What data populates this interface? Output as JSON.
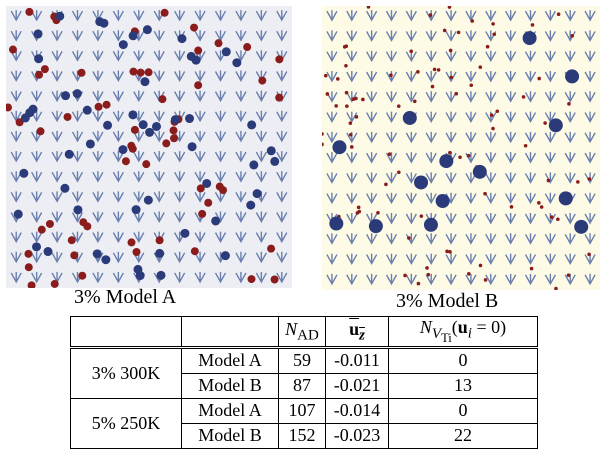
{
  "captions": {
    "left": "3% Model A",
    "right": "3% Model B"
  },
  "table": {
    "header": [
      [
        "N",
        "AD"
      ],
      [
        "u",
        "z"
      ],
      [
        "N",
        "V",
        "Ti",
        "(",
        "u",
        "i",
        " = 0)"
      ]
    ],
    "groups": [
      {
        "label": "3% 300K",
        "rows": [
          [
            "Model A",
            59,
            -0.011,
            0
          ],
          [
            "Model B",
            87,
            -0.021,
            13
          ]
        ]
      },
      {
        "label": "5% 250K",
        "rows": [
          [
            "Model A",
            107,
            -0.014,
            0
          ],
          [
            "Model B",
            152,
            -0.023,
            22
          ]
        ]
      }
    ]
  }
}
